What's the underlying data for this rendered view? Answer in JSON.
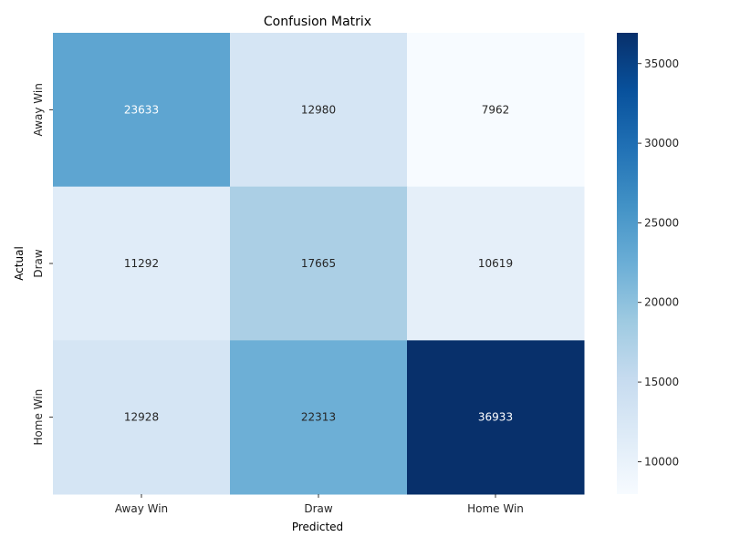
{
  "chart_data": {
    "type": "heatmap",
    "title": "Confusion Matrix",
    "xlabel": "Predicted",
    "ylabel": "Actual",
    "x_categories": [
      "Away Win",
      "Draw",
      "Home Win"
    ],
    "y_categories": [
      "Away Win",
      "Draw",
      "Home Win"
    ],
    "values": [
      [
        23633,
        12980,
        7962
      ],
      [
        11292,
        17665,
        10619
      ],
      [
        12928,
        22313,
        36933
      ]
    ],
    "colormap": "Blues",
    "color_range": [
      7962,
      36933
    ],
    "colorbar_ticks": [
      "10000",
      "15000",
      "20000",
      "25000",
      "30000",
      "35000"
    ],
    "colorbar_tick_values": [
      10000,
      15000,
      20000,
      25000,
      30000,
      35000
    ]
  }
}
